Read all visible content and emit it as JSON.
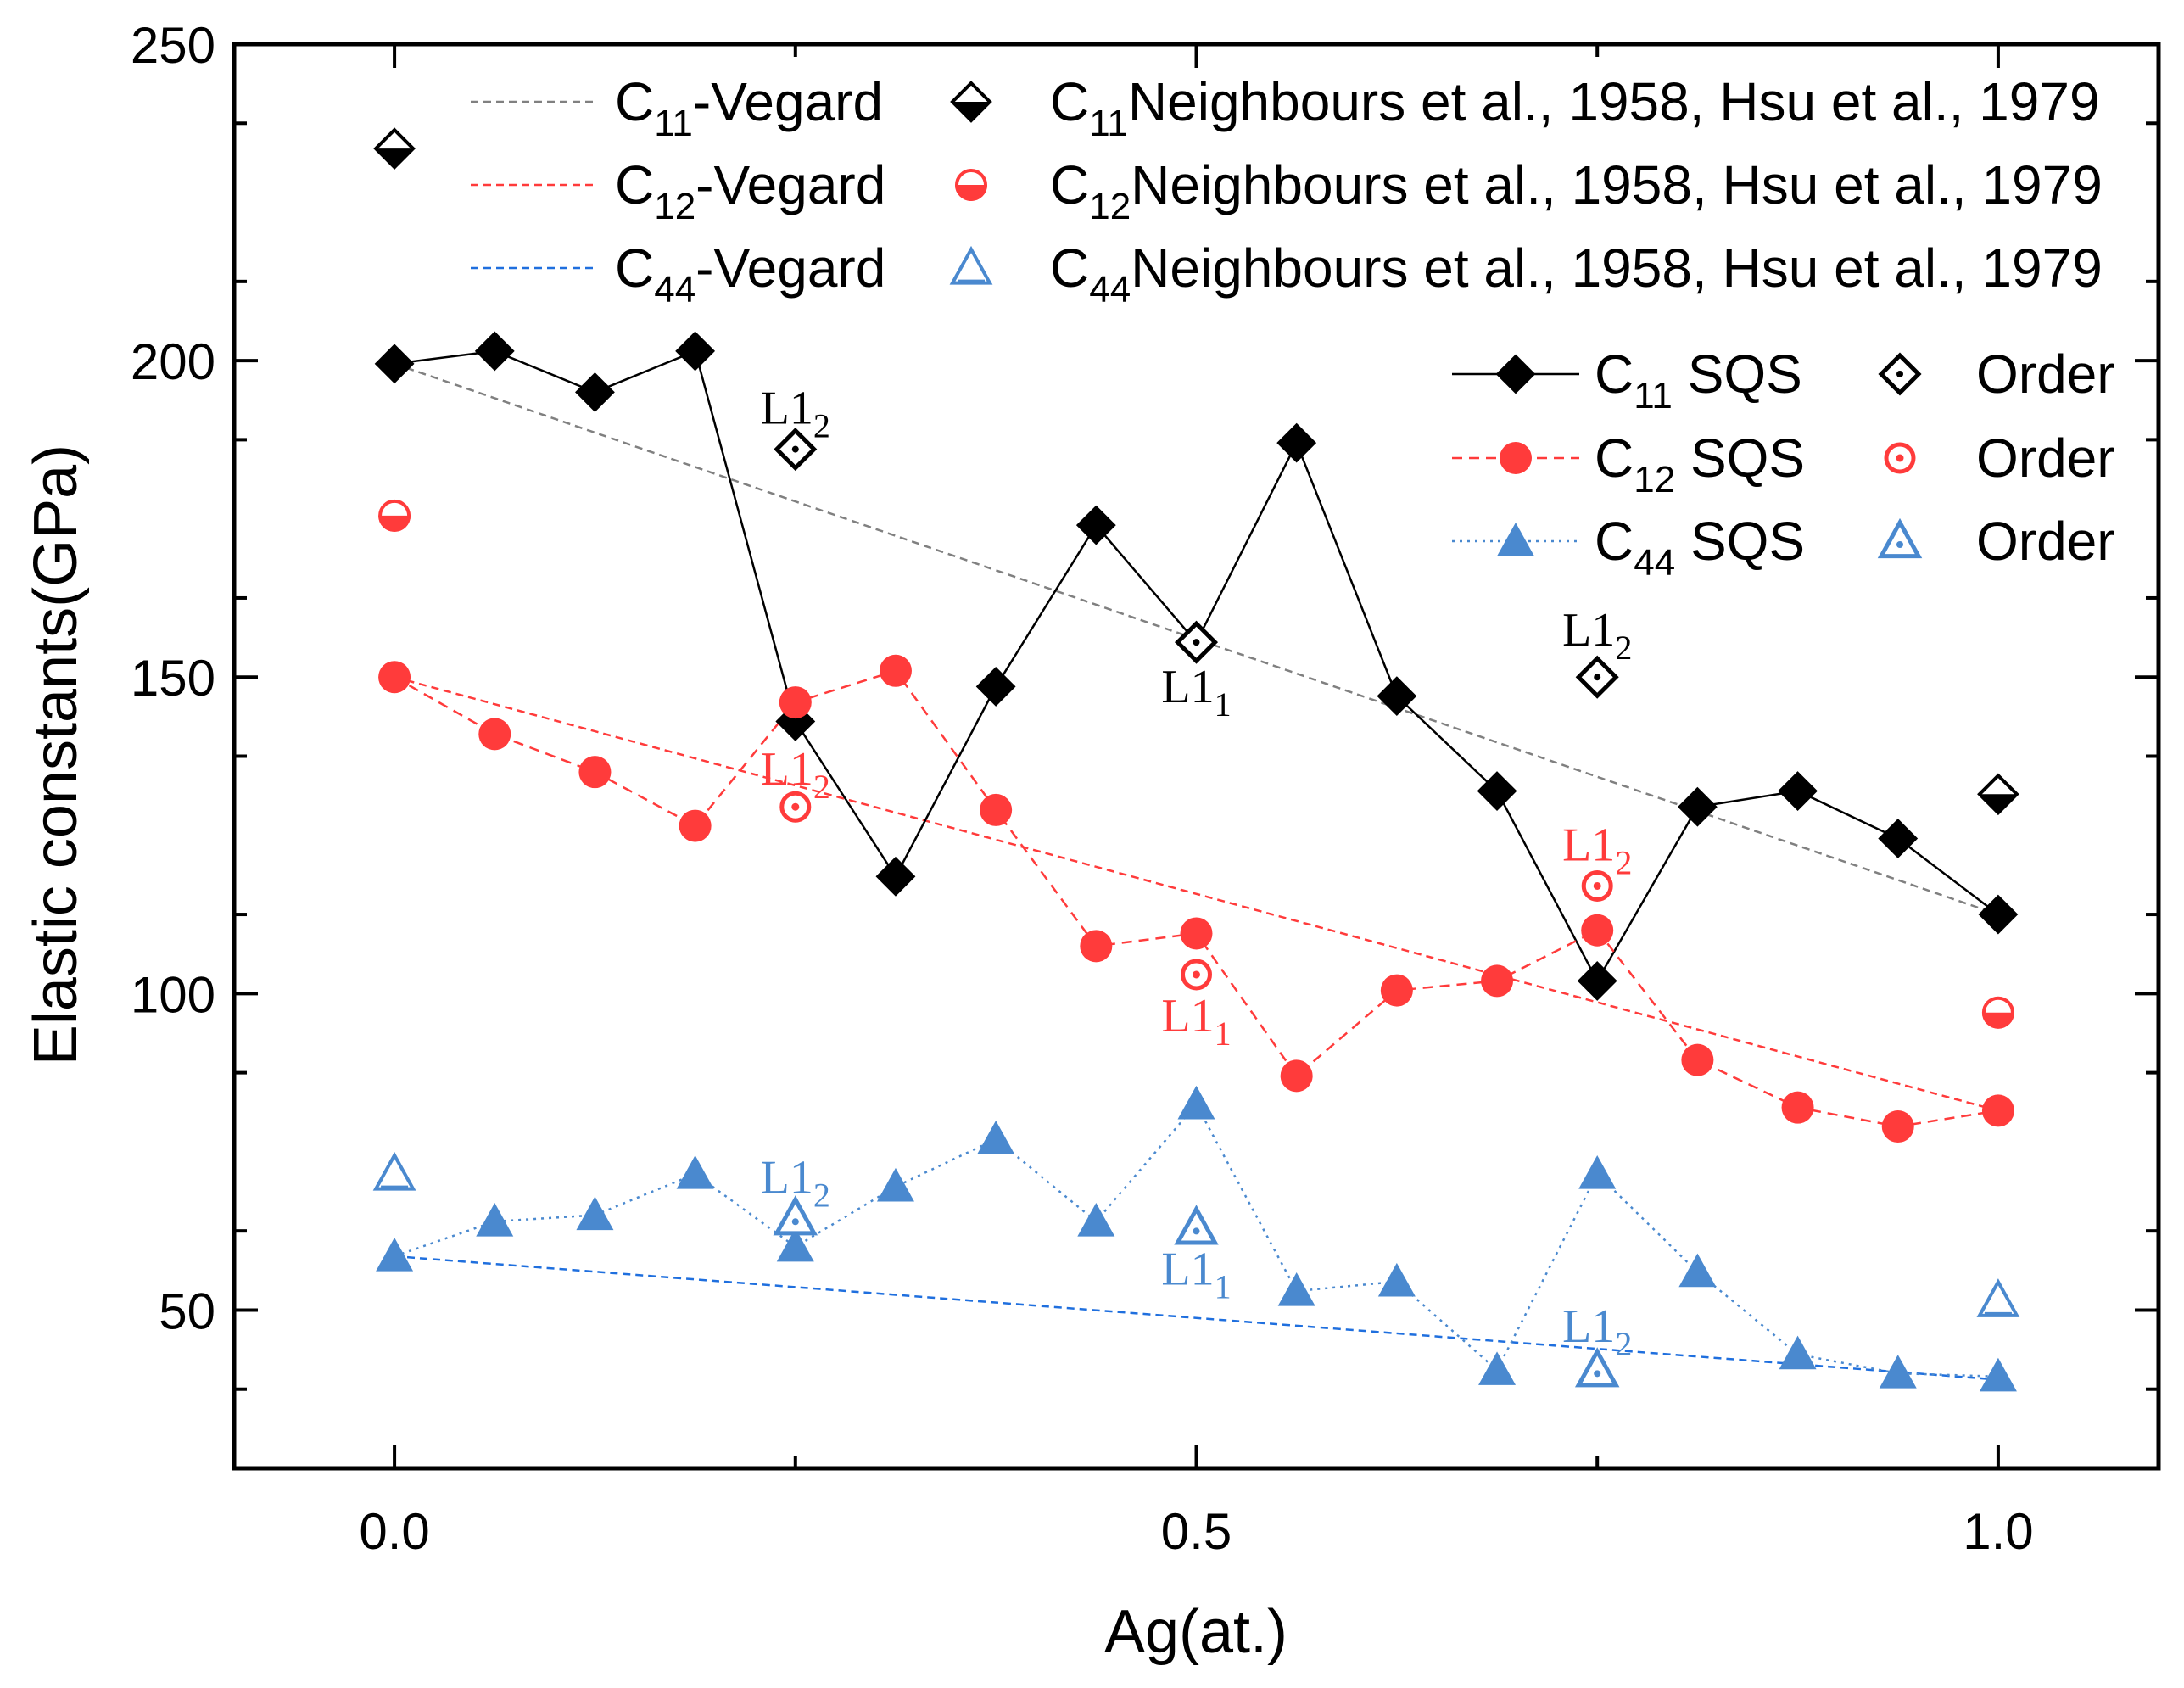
{
  "chart_data": {
    "type": "scatter",
    "title": "",
    "xlabel": "Ag(at.)",
    "ylabel": "Elastic constants(GPa)",
    "xlim": [
      -0.1,
      1.1
    ],
    "ylim": [
      25,
      250
    ],
    "xticks": [
      0.0,
      0.5,
      1.0
    ],
    "xtick_labels": [
      "0.0",
      "0.5",
      "1.0"
    ],
    "yticks": [
      50,
      100,
      150,
      200,
      250
    ],
    "ytick_labels": [
      "50",
      "100",
      "150",
      "200",
      "250"
    ],
    "grid": false,
    "colors": {
      "black": "#000000",
      "red": "#ff3b3b",
      "blue": "#4a89cf",
      "grey": "#808080",
      "vblue": "#1f6fde"
    },
    "vegard": [
      {
        "name": "C11-Vegard",
        "sym": "C",
        "sub": "11",
        "suffix": "-Vegard",
        "color": "#808080",
        "x": [
          0,
          1
        ],
        "y": [
          199.5,
          112.5
        ]
      },
      {
        "name": "C12-Vegard",
        "sym": "C",
        "sub": "12",
        "suffix": "-Vegard",
        "color": "#ff3b3b",
        "x": [
          0,
          1
        ],
        "y": [
          150,
          81.5
        ]
      },
      {
        "name": "C44-Vegard",
        "sym": "C",
        "sub": "44",
        "suffix": "-Vegard",
        "color": "#1f6fde",
        "x": [
          0,
          1
        ],
        "y": [
          58.5,
          39
        ]
      }
    ],
    "sqs": [
      {
        "name": "C11 SQS",
        "sym": "C",
        "sub": "11",
        "suffix": " SQS",
        "marker": "diamond",
        "color": "#000000",
        "dash": "solid",
        "x": [
          0,
          0.0625,
          0.125,
          0.1875,
          0.25,
          0.3125,
          0.375,
          0.4375,
          0.5,
          0.5625,
          0.625,
          0.6875,
          0.75,
          0.8125,
          0.875,
          0.9375,
          1.0
        ],
        "y": [
          199.5,
          201.5,
          195,
          201.5,
          143,
          118.5,
          148.5,
          174,
          155.5,
          187,
          147,
          132,
          102,
          129.5,
          132,
          124.5,
          112.5
        ]
      },
      {
        "name": "C12 SQS",
        "sym": "C",
        "sub": "12",
        "suffix": " SQS",
        "marker": "circle",
        "color": "#ff3b3b",
        "dash": "dashed",
        "x": [
          0,
          0.0625,
          0.125,
          0.1875,
          0.25,
          0.3125,
          0.375,
          0.4375,
          0.5,
          0.5625,
          0.625,
          0.6875,
          0.75,
          0.8125,
          0.875,
          0.9375,
          1.0
        ],
        "y": [
          150,
          141,
          135,
          126.5,
          146,
          151,
          129,
          107.5,
          109.5,
          87,
          100.5,
          102,
          110,
          89.5,
          82,
          79,
          81.5
        ]
      },
      {
        "name": "C44 SQS",
        "sym": "C",
        "sub": "44",
        "suffix": " SQS",
        "marker": "triangle",
        "color": "#4a89cf",
        "dash": "dotted",
        "x": [
          0,
          0.0625,
          0.125,
          0.1875,
          0.25,
          0.3125,
          0.375,
          0.4375,
          0.5,
          0.5625,
          0.625,
          0.6875,
          0.75,
          0.8125,
          0.875,
          0.9375,
          1.0
        ],
        "y": [
          58.5,
          64,
          65,
          71.5,
          60,
          69.5,
          77,
          64,
          82.5,
          53,
          54.5,
          40.5,
          71.5,
          56,
          43,
          40,
          39.5
        ]
      }
    ],
    "order": [
      {
        "name": "C11 Order",
        "label": "Order",
        "marker": "diamond-dot",
        "color": "#000000",
        "x": [
          0.25,
          0.5,
          0.75
        ],
        "y": [
          186,
          155.5,
          150
        ],
        "phase_labels": [
          "L12",
          "L11",
          "L12"
        ]
      },
      {
        "name": "C12 Order",
        "label": "Order",
        "marker": "circle-dot",
        "color": "#ff3b3b",
        "x": [
          0.25,
          0.5,
          0.75
        ],
        "y": [
          129.5,
          103,
          117
        ],
        "phase_labels": [
          "L12",
          "L11",
          "L12"
        ]
      },
      {
        "name": "C44 Order",
        "label": "Order",
        "marker": "triangle-dot",
        "color": "#4a89cf",
        "x": [
          0.25,
          0.5,
          0.75
        ],
        "y": [
          64.5,
          63,
          40.5
        ],
        "phase_labels": [
          "L12",
          "L11",
          "L12"
        ]
      }
    ],
    "experiment": [
      {
        "name": "C11 Neighbours et al., 1958, Hsu et al., 1979",
        "sym": "C",
        "sub": "11",
        "suffix": "Neighbours et al., 1958, Hsu et al., 1979",
        "marker": "diamond-half",
        "color": "#000000",
        "x": [
          0,
          1
        ],
        "y": [
          233.5,
          131.5
        ]
      },
      {
        "name": "C12 Neighbours et al., 1958, Hsu et al., 1979",
        "sym": "C",
        "sub": "12",
        "suffix": "Neighbours et al., 1958, Hsu et al., 1979",
        "marker": "circle-half",
        "color": "#ff3b3b",
        "x": [
          0,
          1
        ],
        "y": [
          175.5,
          97
        ]
      },
      {
        "name": "C44 Neighbours et al., 1958, Hsu et al., 1979",
        "sym": "C",
        "sub": "44",
        "suffix": "Neighbours et al., 1958, Hsu et al., 1979",
        "marker": "triangle-open",
        "color": "#4a89cf",
        "x": [
          0,
          1
        ],
        "y": [
          71.5,
          51.5
        ]
      }
    ],
    "annotations": [
      {
        "x": 0.25,
        "y": 190,
        "base": "L1",
        "sub": "2",
        "color": "#000000"
      },
      {
        "x": 0.5,
        "y": 146,
        "base": "L1",
        "sub": "1",
        "color": "#000000"
      },
      {
        "x": 0.75,
        "y": 155,
        "base": "L1",
        "sub": "2",
        "color": "#000000"
      },
      {
        "x": 0.25,
        "y": 133,
        "base": "L1",
        "sub": "2",
        "color": "#ff3b3b"
      },
      {
        "x": 0.5,
        "y": 94,
        "base": "L1",
        "sub": "1",
        "color": "#ff3b3b"
      },
      {
        "x": 0.75,
        "y": 121,
        "base": "L1",
        "sub": "2",
        "color": "#ff3b3b"
      },
      {
        "x": 0.25,
        "y": 68.5,
        "base": "L1",
        "sub": "2",
        "color": "#4a89cf"
      },
      {
        "x": 0.5,
        "y": 54,
        "base": "L1",
        "sub": "1",
        "color": "#4a89cf"
      },
      {
        "x": 0.75,
        "y": 45,
        "base": "L1",
        "sub": "2",
        "color": "#4a89cf"
      }
    ]
  }
}
